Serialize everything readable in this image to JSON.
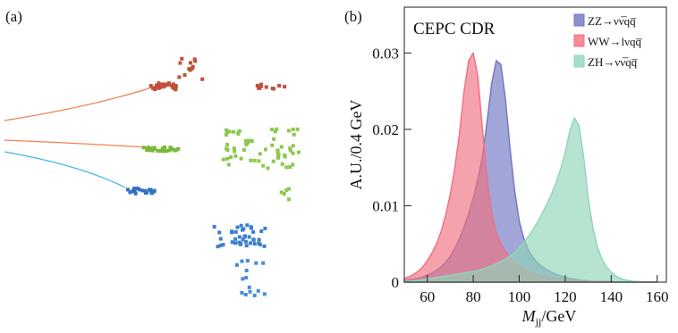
{
  "panel_a": {
    "label": "(a)"
  },
  "chart_data": {
    "type": "area",
    "panel_label": "(b)",
    "annotation": "CEPC CDR",
    "ylabel": "A.U./0.4 GeV",
    "xlabel": {
      "symbol": "M",
      "subscript": "jj",
      "unit": "/GeV"
    },
    "x": [
      50,
      52,
      54,
      56,
      58,
      60,
      62,
      64,
      66,
      68,
      70,
      72,
      74,
      76,
      78,
      80,
      82,
      84,
      86,
      88,
      90,
      92,
      94,
      96,
      98,
      100,
      102,
      104,
      106,
      108,
      110,
      112,
      114,
      116,
      118,
      120,
      122,
      124,
      126,
      128,
      130,
      132,
      134,
      136,
      138,
      140,
      142,
      144,
      146,
      148,
      150,
      152,
      154,
      156,
      158,
      160
    ],
    "series": [
      {
        "name": "ZZ→νν̅qq̅",
        "color": "#6f74c2",
        "values": [
          0.0002,
          0.0003,
          0.0004,
          0.0005,
          0.0007,
          0.0009,
          0.0012,
          0.0015,
          0.002,
          0.0026,
          0.0034,
          0.0044,
          0.0057,
          0.0072,
          0.009,
          0.011,
          0.0135,
          0.0165,
          0.021,
          0.026,
          0.029,
          0.0285,
          0.024,
          0.0175,
          0.012,
          0.008,
          0.0057,
          0.0042,
          0.0032,
          0.0025,
          0.002,
          0.0016,
          0.0013,
          0.001,
          0.0008,
          0.0006,
          0.0005,
          0.0004,
          0.0003,
          0.0002,
          0.0002,
          0.0001,
          0.0001,
          0.0001,
          0.0001,
          0.0001,
          0,
          0,
          0,
          0,
          0,
          0,
          0,
          0,
          0,
          0
        ]
      },
      {
        "name": "WW→lνqq̅",
        "color": "#f07080",
        "values": [
          0.0005,
          0.0007,
          0.001,
          0.0014,
          0.002,
          0.0028,
          0.0038,
          0.005,
          0.0066,
          0.0088,
          0.0115,
          0.015,
          0.0195,
          0.025,
          0.029,
          0.03,
          0.027,
          0.02,
          0.0135,
          0.009,
          0.0065,
          0.005,
          0.004,
          0.0032,
          0.0026,
          0.0021,
          0.0017,
          0.0014,
          0.0012,
          0.001,
          0.0008,
          0.0007,
          0.0006,
          0.0005,
          0.0004,
          0.0003,
          0.0003,
          0.0002,
          0.0002,
          0.0001,
          0.0001,
          0.0001,
          0.0001,
          0.0001,
          0.0001,
          0.0001,
          0,
          0,
          0,
          0,
          0,
          0,
          0,
          0,
          0,
          0
        ]
      },
      {
        "name": "ZH→νν̅qq̅",
        "color": "#8fd6b8",
        "values": [
          0.0001,
          0.0001,
          0.0002,
          0.0002,
          0.0003,
          0.0004,
          0.0005,
          0.0006,
          0.0007,
          0.0008,
          0.0009,
          0.001,
          0.0011,
          0.0012,
          0.0013,
          0.0014,
          0.0015,
          0.0017,
          0.0019,
          0.0021,
          0.0024,
          0.0027,
          0.003,
          0.0034,
          0.0039,
          0.0045,
          0.0052,
          0.006,
          0.0069,
          0.0079,
          0.009,
          0.0102,
          0.0115,
          0.013,
          0.0148,
          0.017,
          0.0198,
          0.0215,
          0.0205,
          0.0165,
          0.011,
          0.0072,
          0.0046,
          0.003,
          0.002,
          0.0013,
          0.0008,
          0.0005,
          0.0003,
          0.0002,
          0.0001,
          0.0001,
          0,
          0,
          0,
          0
        ]
      }
    ],
    "xlim": [
      50,
      164
    ],
    "ylim": [
      0,
      0.036
    ],
    "xticks": [
      60,
      80,
      100,
      120,
      140,
      160
    ],
    "yticks": [
      0,
      0.01,
      0.02,
      0.03
    ]
  }
}
